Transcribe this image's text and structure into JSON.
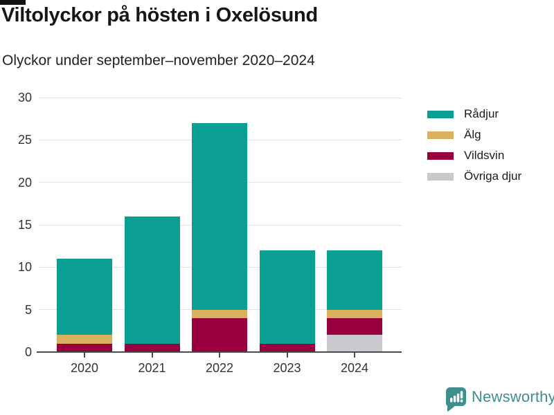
{
  "header": {
    "title": "Viltolyckor på hösten i Oxelösund",
    "subtitle": "Olyckor under september–november 2020–2024"
  },
  "chart_data": {
    "type": "bar",
    "stacked": true,
    "title": "Viltolyckor på hösten i Oxelösund",
    "subtitle": "Olyckor under september–november 2020–2024",
    "categories": [
      "2020",
      "2021",
      "2022",
      "2023",
      "2024"
    ],
    "series": [
      {
        "name": "Rådjur",
        "color": "#0b9f94",
        "values": [
          9,
          15,
          22,
          11,
          7
        ]
      },
      {
        "name": "Älg",
        "color": "#d9b05c",
        "values": [
          1,
          0,
          1,
          0,
          1
        ]
      },
      {
        "name": "Vildsvin",
        "color": "#99003d",
        "values": [
          1,
          1,
          4,
          1,
          2
        ]
      },
      {
        "name": "Övriga djur",
        "color": "#c9c8ce",
        "values": [
          0,
          0,
          0,
          0,
          2
        ]
      }
    ],
    "stack_order_bottom_to_top": [
      "Övriga djur",
      "Vildsvin",
      "Älg",
      "Rådjur"
    ],
    "totals": [
      11,
      16,
      27,
      12,
      12
    ],
    "xlabel": "",
    "ylabel": "",
    "ylim": [
      0,
      30
    ],
    "yticks": [
      0,
      5,
      10,
      15,
      20,
      25,
      30
    ],
    "grid": true,
    "legend_position": "right"
  },
  "colors": {
    "gridline": "#e2e2e2",
    "axis": "#4b4b4b",
    "tick_label": "#333333",
    "title": "#161616",
    "brand": "#3e8f8b"
  },
  "footer": {
    "brand": "Newsworthy"
  }
}
